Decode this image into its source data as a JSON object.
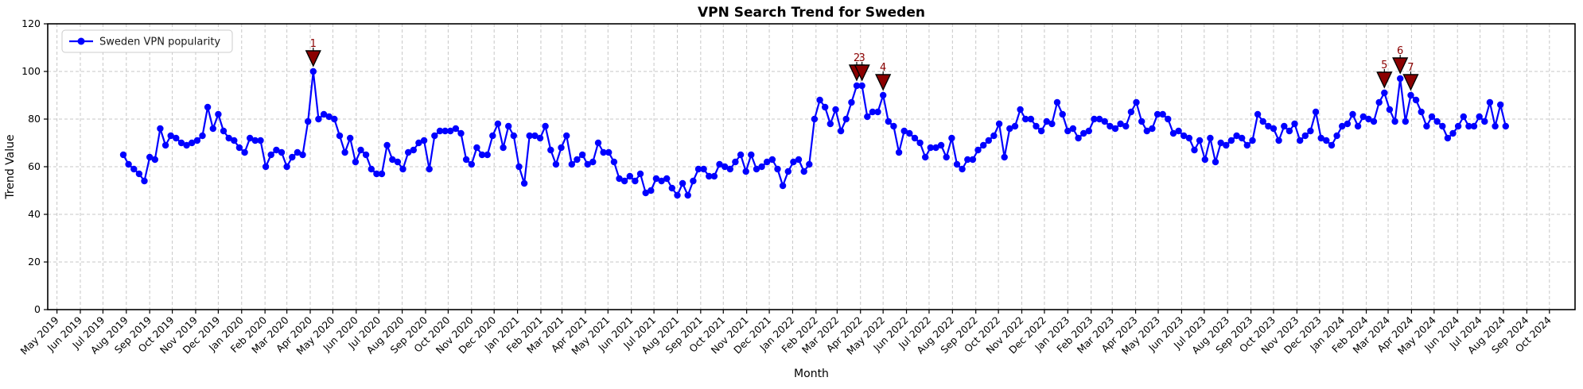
{
  "page": {
    "background": "#ffffff"
  },
  "legend": {
    "label": "Sweden VPN popularity"
  },
  "chart_data": {
    "type": "line",
    "title": "VPN Search Trend for Sweden",
    "xlabel": "Month",
    "ylabel": "Trend Value",
    "ylim": [
      0,
      120
    ],
    "yticks": [
      0,
      20,
      40,
      60,
      80,
      100,
      120
    ],
    "grid": true,
    "legend_position": "upper left",
    "x_tick_labels": [
      "May 2019",
      "Jun 2019",
      "Jul 2019",
      "Aug 2019",
      "Sep 2019",
      "Oct 2019",
      "Nov 2019",
      "Dec 2019",
      "Jan 2020",
      "Feb 2020",
      "Mar 2020",
      "Apr 2020",
      "May 2020",
      "Jun 2020",
      "Jul 2020",
      "Aug 2020",
      "Sep 2020",
      "Oct 2020",
      "Nov 2020",
      "Dec 2020",
      "Jan 2021",
      "Feb 2021",
      "Mar 2021",
      "Apr 2021",
      "May 2021",
      "Jun 2021",
      "Jul 2021",
      "Aug 2021",
      "Sep 2021",
      "Oct 2021",
      "Nov 2021",
      "Dec 2021",
      "Jan 2022",
      "Feb 2022",
      "Mar 2022",
      "Apr 2022",
      "May 2022",
      "Jun 2022",
      "Jul 2022",
      "Aug 2022",
      "Sep 2022",
      "Oct 2022",
      "Nov 2022",
      "Dec 2022",
      "Jan 2023",
      "Feb 2023",
      "Mar 2023",
      "Apr 2023",
      "May 2023",
      "Jun 2023",
      "Jul 2023",
      "Aug 2023",
      "Sep 2023",
      "Oct 2023",
      "Nov 2023",
      "Dec 2023",
      "Jan 2024",
      "Feb 2024",
      "Mar 2024",
      "Apr 2024",
      "May 2024",
      "Jun 2024",
      "Jul 2024",
      "Aug 2024",
      "Sep 2024",
      "Oct 2024"
    ],
    "series": [
      {
        "name": "Sweden VPN popularity",
        "color": "#0000ff",
        "marker": "circle",
        "start_week": "2019-07-28",
        "interval_days": 7,
        "values": [
          65,
          61,
          59,
          57,
          54,
          64,
          63,
          76,
          69,
          73,
          72,
          70,
          69,
          70,
          71,
          73,
          85,
          76,
          82,
          75,
          72,
          71,
          68,
          66,
          72,
          71,
          71,
          60,
          65,
          67,
          66,
          60,
          64,
          66,
          65,
          79,
          100,
          80,
          82,
          81,
          80,
          73,
          66,
          72,
          62,
          67,
          65,
          59,
          57,
          57,
          69,
          63,
          62,
          59,
          66,
          67,
          70,
          71,
          59,
          73,
          75,
          75,
          75,
          76,
          74,
          63,
          61,
          68,
          65,
          65,
          73,
          78,
          68,
          77,
          73,
          60,
          53,
          73,
          73,
          72,
          77,
          67,
          61,
          68,
          73,
          61,
          63,
          65,
          61,
          62,
          70,
          66,
          66,
          62,
          55,
          54,
          56,
          54,
          57,
          49,
          50,
          55,
          54,
          55,
          51,
          48,
          53,
          48,
          54,
          59,
          59,
          56,
          56,
          61,
          60,
          59,
          62,
          65,
          58,
          65,
          59,
          60,
          62,
          63,
          59,
          52,
          58,
          62,
          63,
          58,
          61,
          80,
          88,
          85,
          78,
          84,
          75,
          80,
          87,
          94,
          94,
          81,
          83,
          83,
          90,
          79,
          77,
          66,
          75,
          74,
          72,
          70,
          64,
          68,
          68,
          69,
          64,
          72,
          61,
          59,
          63,
          63,
          67,
          69,
          71,
          73,
          78,
          64,
          76,
          77,
          84,
          80,
          80,
          77,
          75,
          79,
          78,
          87,
          82,
          75,
          76,
          72,
          74,
          75,
          80,
          80,
          79,
          77,
          76,
          78,
          77,
          83,
          87,
          79,
          75,
          76,
          82,
          82,
          80,
          74,
          75,
          73,
          72,
          67,
          71,
          63,
          72,
          62,
          70,
          69,
          71,
          73,
          72,
          69,
          71,
          82,
          79,
          77,
          76,
          71,
          77,
          75,
          78,
          71,
          73,
          75,
          83,
          72,
          71,
          69,
          73,
          77,
          78,
          82,
          77,
          81,
          80,
          79,
          87,
          91,
          84,
          79,
          97,
          79,
          90,
          88,
          83,
          77,
          81,
          79,
          77,
          72,
          74,
          77,
          81,
          77,
          77,
          81,
          79,
          87,
          77,
          86,
          77
        ]
      }
    ],
    "annotations": [
      {
        "label": "1",
        "week_index": 36,
        "value": 100
      },
      {
        "label": "2",
        "week_index": 139,
        "value": 94
      },
      {
        "label": "3",
        "week_index": 140,
        "value": 94
      },
      {
        "label": "4",
        "week_index": 144,
        "value": 90
      },
      {
        "label": "5",
        "week_index": 239,
        "value": 91
      },
      {
        "label": "6",
        "week_index": 242,
        "value": 97
      },
      {
        "label": "7",
        "week_index": 244,
        "value": 90
      }
    ],
    "annotation_style": {
      "marker": "triangle-down",
      "fill": "#8b0000",
      "edge": "#000000",
      "label_color": "#8b0000"
    }
  }
}
